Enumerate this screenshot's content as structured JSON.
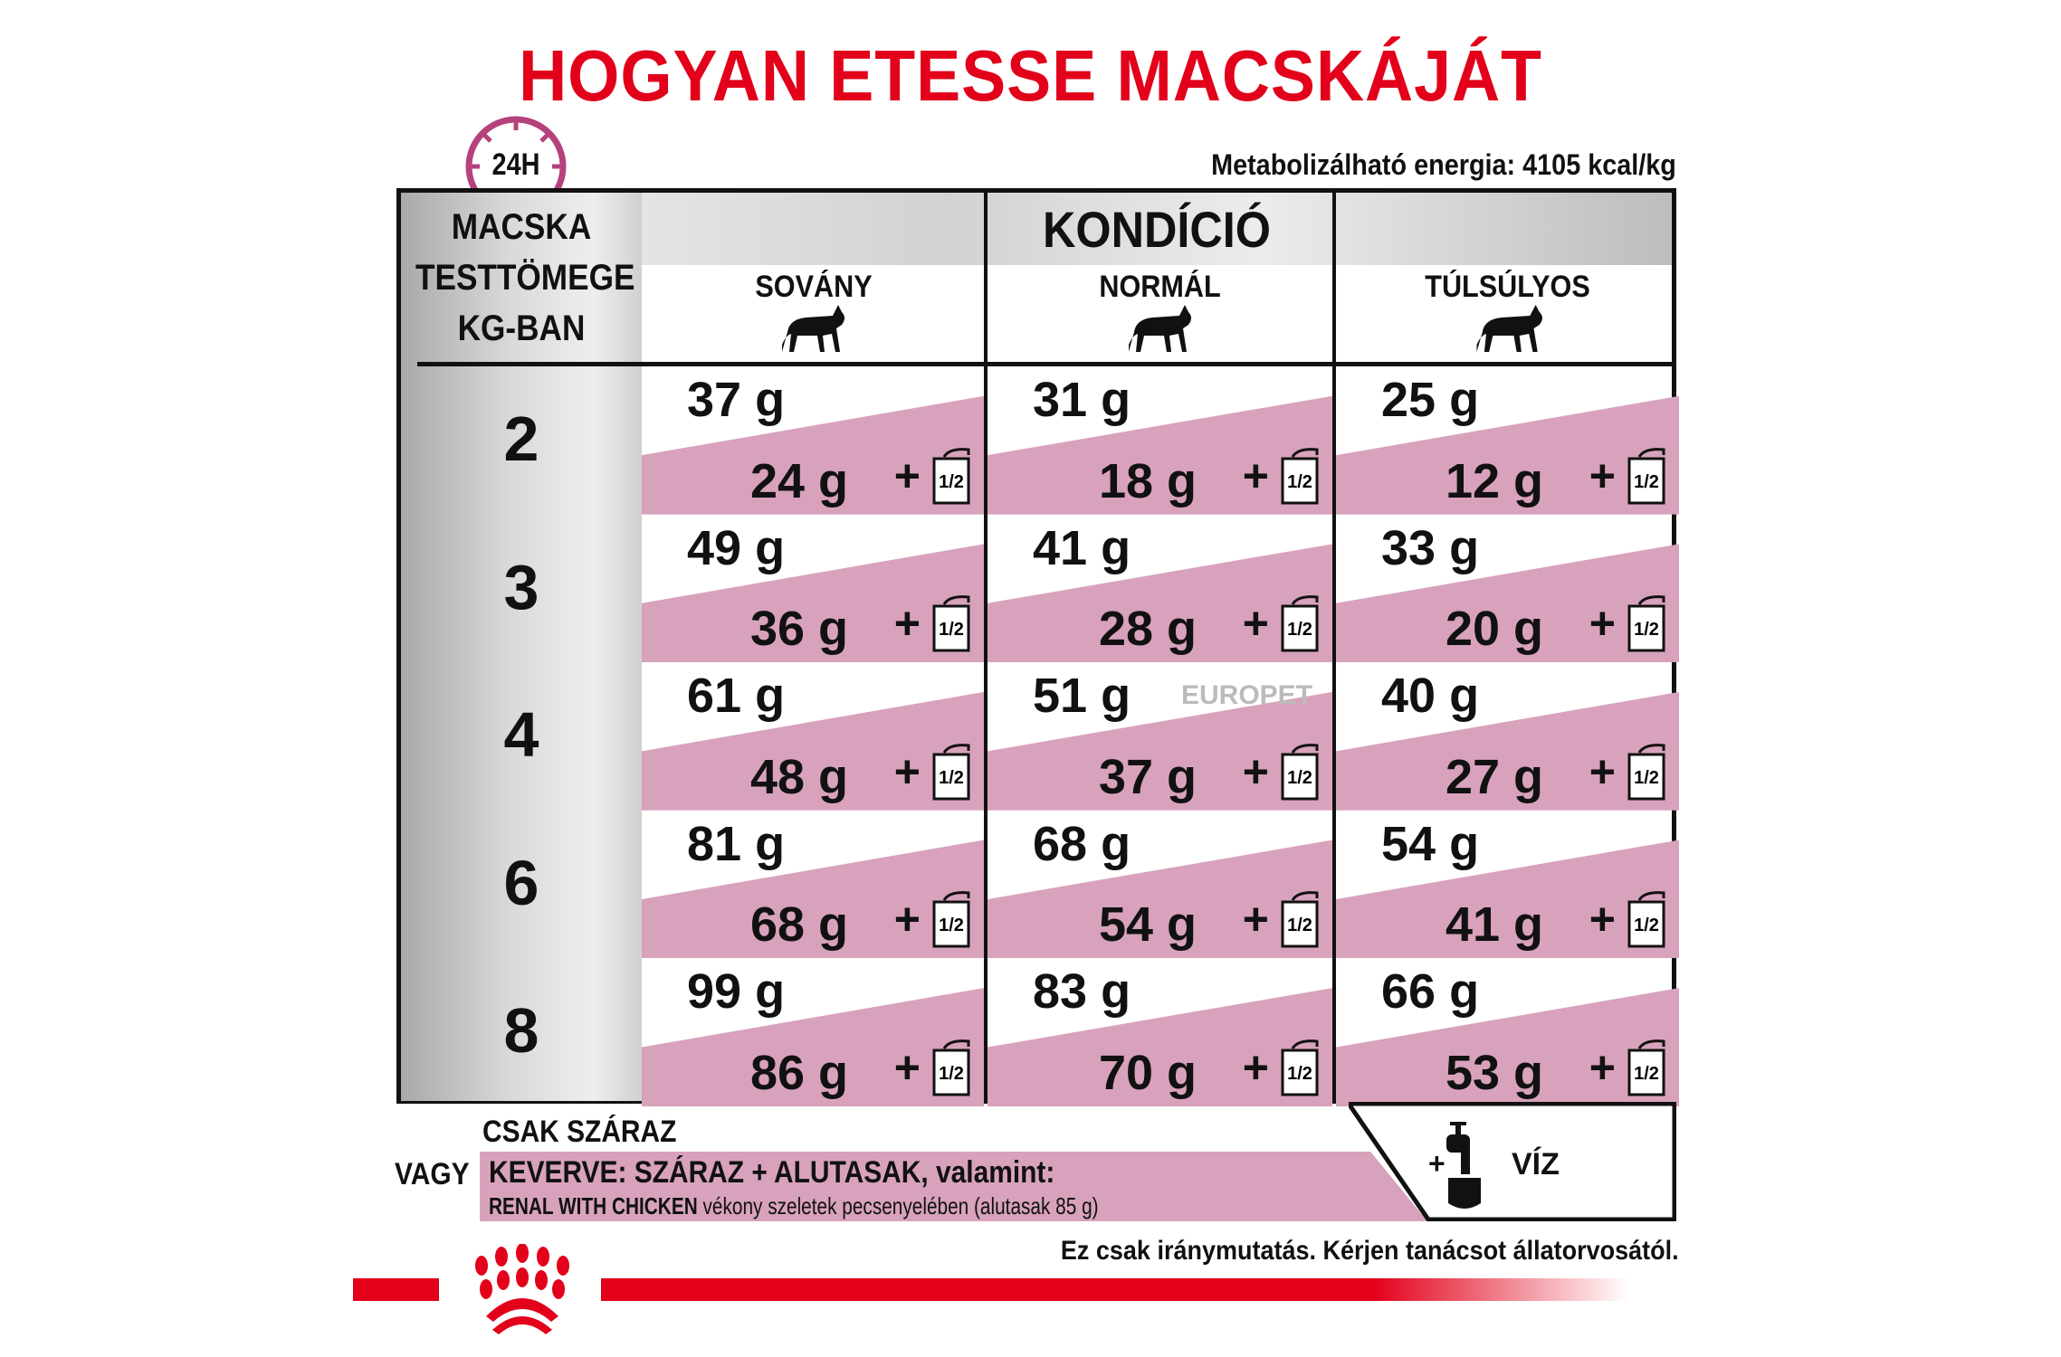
{
  "title": "HOGYAN ETESSE MACSKÁJÁT",
  "clock_label": "24H",
  "energy": "Metabolizálható energia: 4105 kcal/kg",
  "table": {
    "weight_header": [
      "MACSKA",
      "TESTTÖMEGE",
      "KG-BAN"
    ],
    "condition_header": "KONDÍCIÓ",
    "columns": [
      "SOVÁNY",
      "NORMÁL",
      "TÚLSÚLYOS"
    ],
    "rows": [
      {
        "weight": "2",
        "cells": [
          [
            "37 g",
            "24 g"
          ],
          [
            "31 g",
            "18 g"
          ],
          [
            "25 g",
            "12 g"
          ]
        ]
      },
      {
        "weight": "3",
        "cells": [
          [
            "49 g",
            "36 g"
          ],
          [
            "41 g",
            "28 g"
          ],
          [
            "33 g",
            "20 g"
          ]
        ]
      },
      {
        "weight": "4",
        "cells": [
          [
            "61 g",
            "48 g"
          ],
          [
            "51 g",
            "37 g"
          ],
          [
            "40 g",
            "27 g"
          ]
        ]
      },
      {
        "weight": "6",
        "cells": [
          [
            "81 g",
            "68 g"
          ],
          [
            "68 g",
            "54 g"
          ],
          [
            "54 g",
            "41 g"
          ]
        ]
      },
      {
        "weight": "8",
        "cells": [
          [
            "99 g",
            "86 g"
          ],
          [
            "83 g",
            "70 g"
          ],
          [
            "66 g",
            "53 g"
          ]
        ]
      }
    ],
    "plus": "+",
    "pouch_label": "1/2"
  },
  "footer": {
    "dry_only": "CSAK SZÁRAZ",
    "or": "VAGY",
    "mixed": "KEVERVE: SZÁRAZ + ALUTASAK, valamint:",
    "renal_product": "RENAL WITH CHICKEN",
    "renal_desc": "vékony szeletek pecsenyelében (alutasak 85 g)",
    "water_plus": "+",
    "water": "VÍZ",
    "disclaimer": "Ez csak iránymutatás. Kérjen tanácsot állatorvosától."
  },
  "watermark": "EUROPET",
  "colors": {
    "brand_red": "#e2001a",
    "pink": "#d8a2bc",
    "clock": "#b5427c"
  }
}
